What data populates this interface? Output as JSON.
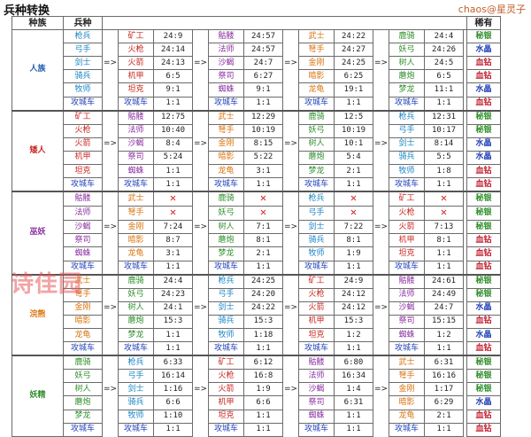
{
  "title": "兵种转换",
  "credit": "chaos@星灵子",
  "watermark": "诗佳园",
  "headers": {
    "race": "种族",
    "unit": "兵种",
    "rare": "稀有"
  },
  "arrow": "=>",
  "colors": {
    "cyan": "#1a86c4",
    "red": "#c8241c",
    "purple": "#8b2fa0",
    "green": "#2f8f2b",
    "orange": "#d9730d",
    "blue": "#1f3fb8",
    "gray": "#555555",
    "gold": "#c88a12",
    "crimson": "#c01d2e"
  },
  "races": [
    {
      "name": "人族",
      "color": "#1f5fb0",
      "rows": [
        {
          "u0": "枪兵",
          "c0": "cyan",
          "a": "矿工",
          "ca": "red",
          "va": "24:9",
          "b": "骷髅",
          "cb": "purple",
          "vb": "24:57",
          "c": "武士",
          "cc": "orange",
          "vc": "24:22",
          "d": "鹿骑",
          "cd": "green",
          "vd": "24:4",
          "r": "秘银",
          "cr": "green"
        },
        {
          "u0": "弓手",
          "c0": "cyan",
          "a": "火枪",
          "ca": "red",
          "va": "24:14",
          "b": "法师",
          "cb": "purple",
          "vb": "24:57",
          "c": "弩手",
          "cc": "orange",
          "vc": "24:27",
          "d": "妖弓",
          "cd": "green",
          "vd": "24:26",
          "r": "水晶",
          "cr": "blue"
        },
        {
          "u0": "剑士",
          "c0": "cyan",
          "a": "火箭",
          "ca": "red",
          "va": "24:13",
          "b": "沙蝎",
          "cb": "purple",
          "vb": "24:7",
          "c": "金刚",
          "cc": "orange",
          "vc": "24:25",
          "d": "树人",
          "cd": "green",
          "vd": "24:5",
          "r": "血钻",
          "cr": "crimson"
        },
        {
          "u0": "骑兵",
          "c0": "cyan",
          "a": "机甲",
          "ca": "red",
          "va": "6:5",
          "b": "祭司",
          "cb": "purple",
          "vb": "6:27",
          "c": "暗影",
          "cc": "orange",
          "vc": "6:25",
          "d": "蘑炮",
          "cd": "green",
          "vd": "6:5",
          "r": "血钻",
          "cr": "crimson"
        },
        {
          "u0": "牧师",
          "c0": "cyan",
          "a": "坦克",
          "ca": "red",
          "va": "9:1",
          "b": "蜘蛛",
          "cb": "purple",
          "vb": "9:1",
          "c": "龙龟",
          "cc": "orange",
          "vc": "19:1",
          "d": "梦龙",
          "cd": "green",
          "vd": "11:1",
          "r": "水晶",
          "cr": "blue"
        },
        {
          "u0": "攻城车",
          "c0": "blue",
          "a": "攻城车",
          "ca": "blue",
          "va": "1:1",
          "b": "攻城车",
          "cb": "blue",
          "vb": "1:1",
          "c": "攻城车",
          "cc": "blue",
          "vc": "1:1",
          "d": "攻城车",
          "cd": "blue",
          "vd": "1:1",
          "r": "血钻",
          "cr": "crimson"
        }
      ]
    },
    {
      "name": "矮人",
      "color": "#c8241c",
      "rows": [
        {
          "u0": "矿工",
          "c0": "red",
          "a": "骷髅",
          "ca": "purple",
          "va": "12:75",
          "b": "武士",
          "cb": "orange",
          "vb": "12:29",
          "c": "鹿骑",
          "cc": "green",
          "vc": "12:5",
          "d": "枪兵",
          "cd": "cyan",
          "vd": "12:31",
          "r": "秘银",
          "cr": "green"
        },
        {
          "u0": "火枪",
          "c0": "red",
          "a": "法师",
          "ca": "purple",
          "va": "10:40",
          "b": "弩手",
          "cb": "orange",
          "vb": "10:19",
          "c": "妖弓",
          "cc": "green",
          "vc": "10:19",
          "d": "弓手",
          "cd": "cyan",
          "vd": "10:17",
          "r": "秘银",
          "cr": "green"
        },
        {
          "u0": "火箭",
          "c0": "red",
          "a": "沙蝎",
          "ca": "purple",
          "va": "8:4",
          "b": "金刚",
          "cb": "orange",
          "vb": "8:15",
          "c": "树人",
          "cc": "green",
          "vc": "10:1",
          "d": "剑士",
          "cd": "cyan",
          "vd": "8:14",
          "r": "水晶",
          "cr": "blue"
        },
        {
          "u0": "机甲",
          "c0": "red",
          "a": "祭司",
          "ca": "purple",
          "va": "5:24",
          "b": "暗影",
          "cb": "orange",
          "vb": "5:22",
          "c": "蘑炮",
          "cc": "green",
          "vc": "5:4",
          "d": "骑兵",
          "cd": "cyan",
          "vd": "5:5",
          "r": "水晶",
          "cr": "blue"
        },
        {
          "u0": "坦克",
          "c0": "red",
          "a": "蜘蛛",
          "ca": "purple",
          "va": "1:1",
          "b": "龙龟",
          "cb": "orange",
          "vb": "3:1",
          "c": "梦龙",
          "cc": "green",
          "vc": "2:1",
          "d": "牧师",
          "cd": "cyan",
          "vd": "1:8",
          "r": "血钻",
          "cr": "crimson"
        },
        {
          "u0": "攻城车",
          "c0": "blue",
          "a": "攻城车",
          "ca": "blue",
          "va": "1:1",
          "b": "攻城车",
          "cb": "blue",
          "vb": "1:1",
          "c": "攻城车",
          "cc": "blue",
          "vc": "1:1",
          "d": "攻城车",
          "cd": "blue",
          "vd": "1:1",
          "r": "血钻",
          "cr": "crimson"
        }
      ]
    },
    {
      "name": "巫妖",
      "color": "#8b2fa0",
      "rows": [
        {
          "u0": "骷髅",
          "c0": "purple",
          "a": "武士",
          "ca": "orange",
          "va": "X",
          "b": "鹿骑",
          "cb": "green",
          "vb": "X",
          "c": "枪兵",
          "cc": "cyan",
          "vc": "X",
          "d": "矿工",
          "cd": "red",
          "vd": "X",
          "r": "秘银",
          "cr": "green"
        },
        {
          "u0": "法师",
          "c0": "purple",
          "a": "弩手",
          "ca": "orange",
          "va": "X",
          "b": "妖弓",
          "cb": "green",
          "vb": "X",
          "c": "弓手",
          "cc": "cyan",
          "vc": "X",
          "d": "火枪",
          "cd": "red",
          "vd": "X",
          "r": "秘银",
          "cr": "green"
        },
        {
          "u0": "沙蝎",
          "c0": "purple",
          "a": "金刚",
          "ca": "orange",
          "va": "7:24",
          "b": "树人",
          "cb": "green",
          "vb": "7:1",
          "c": "剑士",
          "cc": "cyan",
          "vc": "7:22",
          "d": "火箭",
          "cd": "red",
          "vd": "7:13",
          "r": "秘银",
          "cr": "green"
        },
        {
          "u0": "祭司",
          "c0": "purple",
          "a": "暗影",
          "ca": "orange",
          "va": "8:7",
          "b": "蘑炮",
          "cb": "green",
          "vb": "8:1",
          "c": "骑兵",
          "cc": "cyan",
          "vc": "8:1",
          "d": "机甲",
          "cd": "red",
          "vd": "8:1",
          "r": "血钻",
          "cr": "crimson"
        },
        {
          "u0": "蜘蛛",
          "c0": "purple",
          "a": "龙龟",
          "ca": "orange",
          "va": "3:1",
          "b": "梦龙",
          "cb": "green",
          "vb": "2:1",
          "c": "牧师",
          "cc": "cyan",
          "vc": "1:9",
          "d": "坦克",
          "cd": "red",
          "vd": "1:1",
          "r": "血钻",
          "cr": "crimson"
        },
        {
          "u0": "攻城车",
          "c0": "blue",
          "a": "攻城车",
          "ca": "blue",
          "va": "1:1",
          "b": "攻城车",
          "cb": "blue",
          "vb": "1:1",
          "c": "攻城车",
          "cc": "blue",
          "vc": "1:1",
          "d": "攻城车",
          "cd": "blue",
          "vd": "1:1",
          "r": "血钻",
          "cr": "crimson"
        }
      ]
    },
    {
      "name": "浣熊",
      "color": "#d9730d",
      "rows": [
        {
          "u0": "武士",
          "c0": "orange",
          "a": "鹿骑",
          "ca": "green",
          "va": "24:4",
          "b": "枪兵",
          "cb": "cyan",
          "vb": "24:25",
          "c": "矿工",
          "cc": "red",
          "vc": "24:9",
          "d": "骷髅",
          "cd": "purple",
          "vd": "24:61",
          "r": "秘银",
          "cr": "green"
        },
        {
          "u0": "弩手",
          "c0": "orange",
          "a": "妖弓",
          "ca": "green",
          "va": "24:23",
          "b": "弓手",
          "cb": "cyan",
          "vb": "24:20",
          "c": "火枪",
          "cc": "red",
          "vc": "24:12",
          "d": "法师",
          "cd": "purple",
          "vd": "24:49",
          "r": "秘银",
          "cr": "green"
        },
        {
          "u0": "金刚",
          "c0": "orange",
          "a": "树人",
          "ca": "green",
          "va": "24:1",
          "b": "剑士",
          "cb": "cyan",
          "vb": "24:22",
          "c": "火箭",
          "cc": "red",
          "vc": "24:12",
          "d": "沙蝎",
          "cd": "purple",
          "vd": "24:7",
          "r": "水晶",
          "cr": "blue"
        },
        {
          "u0": "暗影",
          "c0": "orange",
          "a": "蘑炮",
          "ca": "green",
          "va": "15:3",
          "b": "骑兵",
          "cb": "cyan",
          "vb": "15:3",
          "c": "机甲",
          "cc": "red",
          "vc": "15:3",
          "d": "祭司",
          "cd": "purple",
          "vd": "15:15",
          "r": "血钻",
          "cr": "crimson"
        },
        {
          "u0": "龙龟",
          "c0": "orange",
          "a": "梦龙",
          "ca": "green",
          "va": "1:1",
          "b": "牧师",
          "cb": "cyan",
          "vb": "1:18",
          "c": "坦克",
          "cc": "red",
          "vc": "1:2",
          "d": "蜘蛛",
          "cd": "purple",
          "vd": "1:2",
          "r": "水晶",
          "cr": "blue"
        },
        {
          "u0": "攻城车",
          "c0": "blue",
          "a": "攻城车",
          "ca": "blue",
          "va": "1:1",
          "b": "攻城车",
          "cb": "blue",
          "vb": "1:1",
          "c": "攻城车",
          "cc": "blue",
          "vc": "1:1",
          "d": "攻城车",
          "cd": "blue",
          "vd": "1:1",
          "r": "血钻",
          "cr": "crimson"
        }
      ]
    },
    {
      "name": "妖精",
      "color": "#2f8f2b",
      "rows": [
        {
          "u0": "鹿骑",
          "c0": "green",
          "a": "枪兵",
          "ca": "cyan",
          "va": "6:33",
          "b": "矿工",
          "cb": "red",
          "vb": "6:12",
          "c": "骷髅",
          "cc": "purple",
          "vc": "6:80",
          "d": "武士",
          "cd": "orange",
          "vd": "6:31",
          "r": "秘银",
          "cr": "green"
        },
        {
          "u0": "妖弓",
          "c0": "green",
          "a": "弓手",
          "ca": "cyan",
          "va": "16:14",
          "b": "火枪",
          "cb": "red",
          "vb": "16:8",
          "c": "法师",
          "cc": "purple",
          "vc": "16:34",
          "d": "弩手",
          "cd": "orange",
          "vd": "16:16",
          "r": "秘银",
          "cr": "green"
        },
        {
          "u0": "树人",
          "c0": "green",
          "a": "剑士",
          "ca": "cyan",
          "va": "1:16",
          "b": "火箭",
          "cb": "red",
          "vb": "1:9",
          "c": "沙蝎",
          "cc": "purple",
          "vc": "1:4",
          "d": "金刚",
          "cd": "orange",
          "vd": "1:17",
          "r": "秘银",
          "cr": "green"
        },
        {
          "u0": "蘑炮",
          "c0": "green",
          "a": "骑兵",
          "ca": "cyan",
          "va": "6:6",
          "b": "机甲",
          "cb": "red",
          "vb": "6:6",
          "c": "祭司",
          "cc": "purple",
          "vc": "6:31",
          "d": "暗影",
          "cd": "orange",
          "vd": "6:29",
          "r": "水晶",
          "cr": "blue"
        },
        {
          "u0": "梦龙",
          "c0": "green",
          "a": "牧师",
          "ca": "cyan",
          "va": "1:10",
          "b": "坦克",
          "cb": "red",
          "vb": "1:1",
          "c": "蜘蛛",
          "cc": "purple",
          "vc": "1:1",
          "d": "龙龟",
          "cd": "orange",
          "vd": "2:1",
          "r": "血钻",
          "cr": "crimson"
        },
        {
          "u0": "攻城车",
          "c0": "blue",
          "a": "攻城车",
          "ca": "blue",
          "va": "1:1",
          "b": "攻城车",
          "cb": "blue",
          "vb": "1:1",
          "c": "攻城车",
          "cc": "blue",
          "vc": "1:1",
          "d": "攻城车",
          "cd": "blue",
          "vd": "1:1",
          "r": "血钻",
          "cr": "crimson"
        }
      ]
    }
  ]
}
